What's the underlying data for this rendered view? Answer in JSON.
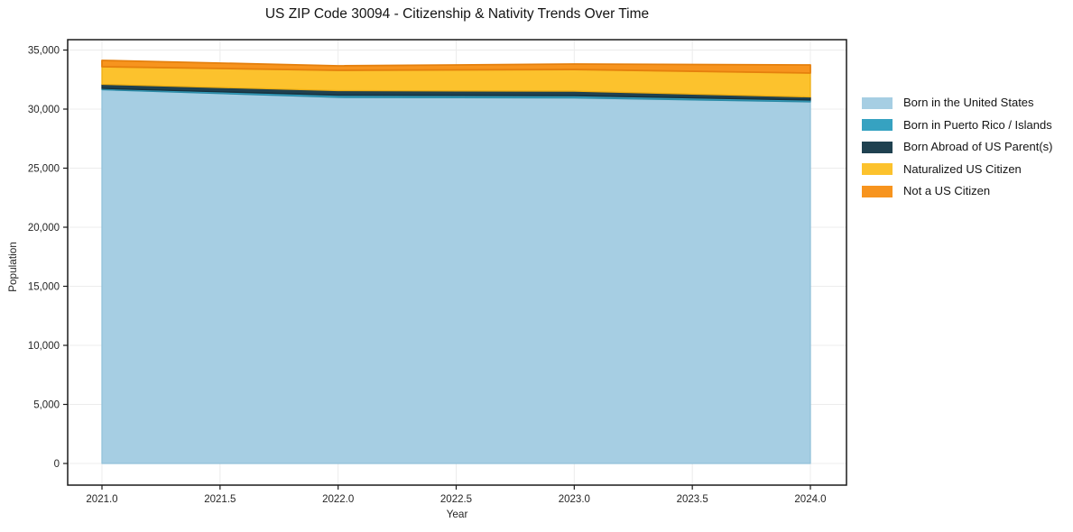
{
  "chart_data": {
    "type": "area",
    "stacked": true,
    "title": "US ZIP Code 30094 - Citizenship & Nativity Trends Over Time",
    "xlabel": "Year",
    "ylabel": "Population",
    "x": [
      2021,
      2022,
      2023,
      2024
    ],
    "xticks": [
      "2021.0",
      "2021.5",
      "2022.0",
      "2022.5",
      "2023.0",
      "2023.5",
      "2024.0"
    ],
    "xtick_values": [
      2021,
      2021.5,
      2022,
      2022.5,
      2023,
      2023.5,
      2024
    ],
    "yticks": [
      "0",
      "5,000",
      "10,000",
      "15,000",
      "20,000",
      "25,000",
      "30,000",
      "35,000"
    ],
    "ytick_values": [
      0,
      5000,
      10000,
      15000,
      20000,
      25000,
      30000,
      35000
    ],
    "xlim": [
      2021,
      2024
    ],
    "ylim": [
      0,
      35000
    ],
    "grid": true,
    "grid_color": "#ececec",
    "legend_position": "right-outside",
    "series": [
      {
        "name": "Born in the United States",
        "color": "#a6cee3",
        "edge_color": "#93c2da",
        "values": [
          31640,
          30990,
          30950,
          30610
        ]
      },
      {
        "name": "Born in Puerto Rico / Islands",
        "color": "#36a2c1",
        "edge_color": "#2b8aa6",
        "values": [
          115,
          190,
          190,
          155
        ]
      },
      {
        "name": "Born Abroad of US Parent(s)",
        "color": "#1f4150",
        "edge_color": "#16303c",
        "values": [
          345,
          385,
          380,
          265
        ]
      },
      {
        "name": "Naturalized US Citizen",
        "color": "#fcc22d",
        "edge_color": "#eeae13",
        "values": [
          1490,
          1720,
          1835,
          2025
        ]
      },
      {
        "name": "Not a US Citizen",
        "color": "#f7941e",
        "edge_color": "#e5800d",
        "values": [
          535,
          380,
          460,
          685
        ]
      }
    ],
    "totals": [
      34125,
      33665,
      33815,
      33740
    ]
  }
}
